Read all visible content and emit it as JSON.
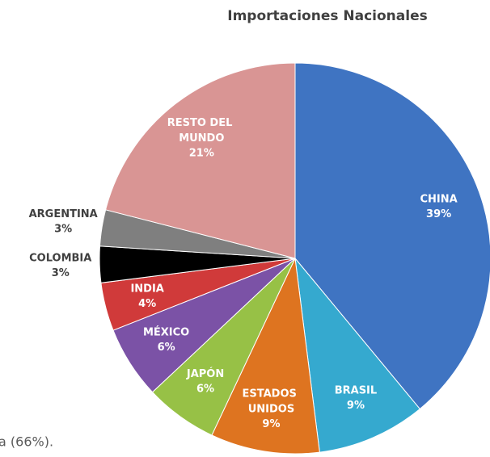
{
  "chart_data": {
    "type": "pie",
    "title": "Importaciones Nacionales",
    "categories": [
      "CHINA",
      "BRASIL",
      "ESTADOS UNIDOS",
      "JAPÓN",
      "MÉXICO",
      "INDIA",
      "COLOMBIA",
      "ARGENTINA",
      "RESTO DEL MUNDO"
    ],
    "values": [
      39,
      9,
      9,
      6,
      6,
      4,
      3,
      3,
      21
    ],
    "value_labels": [
      "39%",
      "9%",
      "9%",
      "6%",
      "6%",
      "4%",
      "3%",
      "3%",
      "21%"
    ],
    "colors": [
      "#3f74c2",
      "#35a9cf",
      "#de7420",
      "#97c146",
      "#7b52a6",
      "#d03a3a",
      "#000000",
      "#7f7f7f",
      "#d99594"
    ]
  },
  "body_text": "a (66%)."
}
